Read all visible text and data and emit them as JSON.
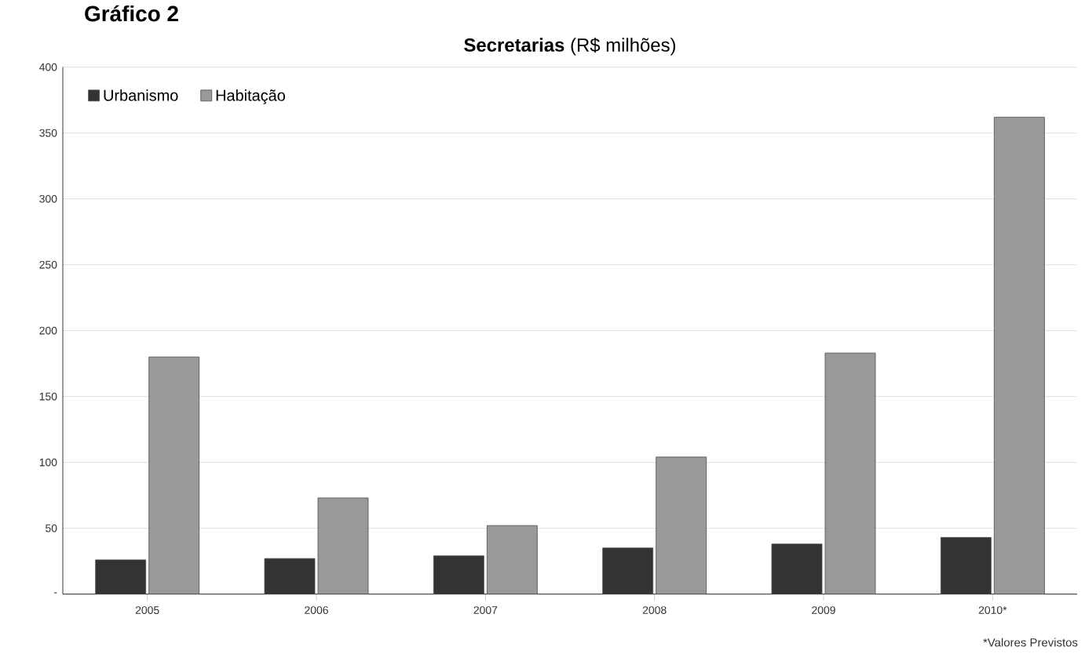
{
  "chart_data": {
    "type": "bar",
    "title": "**Secretarias** (R$ milhões)",
    "categories": [
      "2005",
      "2006",
      "2007",
      "2008",
      "2009",
      "2010*"
    ],
    "series": [
      {
        "name": "Urbanismo",
        "color": "#333333",
        "values": [
          26,
          27,
          29,
          35,
          38,
          43
        ]
      },
      {
        "name": "Habitação",
        "color": "#999999",
        "values": [
          180,
          73,
          52,
          104,
          183,
          362
        ]
      }
    ],
    "ylim": [
      0,
      400
    ],
    "yticks": [
      {
        "value": 0,
        "label": "-"
      },
      50,
      100,
      150,
      200,
      250,
      300,
      350,
      400
    ],
    "grid": "y",
    "legend": "top left",
    "annotations": [
      "Gráfico 2",
      "*Valores Previstos"
    ]
  }
}
